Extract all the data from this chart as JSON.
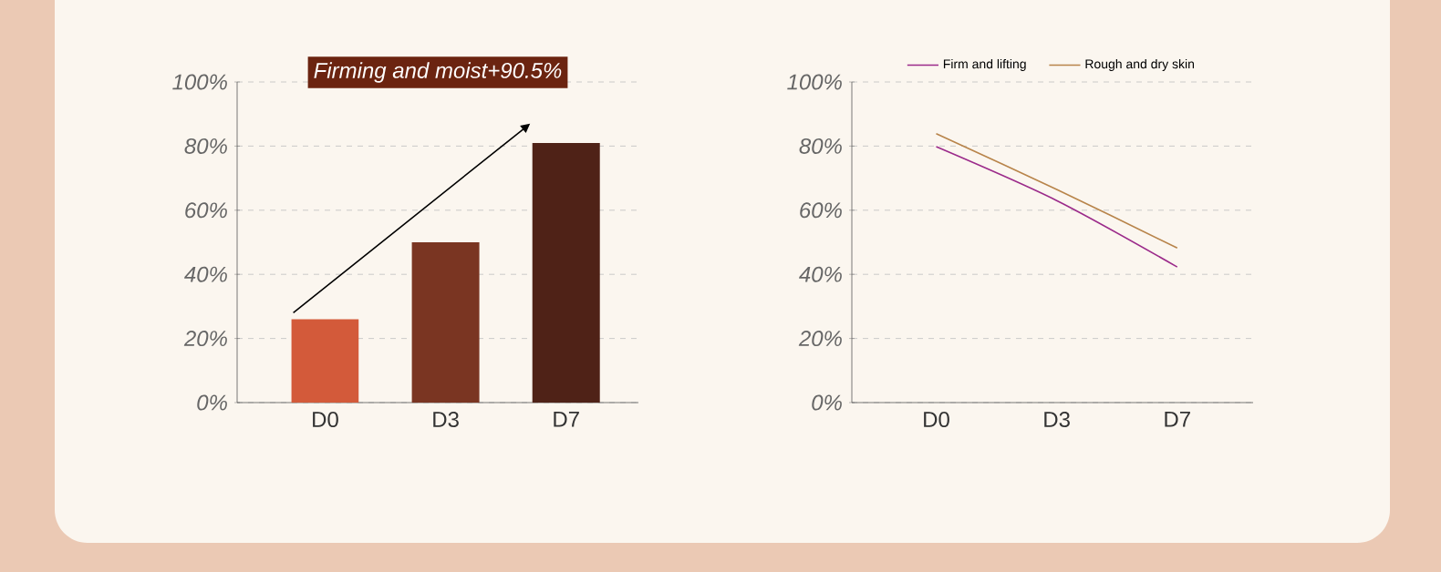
{
  "chart_data": [
    {
      "type": "bar",
      "categories": [
        "D0",
        "D3",
        "D7"
      ],
      "values": [
        26,
        50,
        81
      ],
      "colors": [
        "#d35a3a",
        "#7a3522",
        "#4f2217"
      ],
      "ylim": [
        0,
        100
      ],
      "yticks": [
        {
          "value": 0,
          "label": "0%"
        },
        {
          "value": 20,
          "label": "20%"
        },
        {
          "value": 40,
          "label": "40%"
        },
        {
          "value": 60,
          "label": "60%"
        },
        {
          "value": 80,
          "label": "80%"
        },
        {
          "value": 100,
          "label": "100%"
        }
      ],
      "grid": "y",
      "annotations": [
        "Firming and moist+90.5%"
      ]
    },
    {
      "type": "line",
      "categories": [
        "D0",
        "D3",
        "D7"
      ],
      "series": [
        {
          "name": "Firm and lifting",
          "color": "#9b2a8a",
          "values": [
            79.8,
            63,
            42.3
          ]
        },
        {
          "name": "Rough and dry skin",
          "color": "#b8844a",
          "values": [
            83.9,
            66.5,
            48.2
          ]
        }
      ],
      "ylim": [
        0,
        100
      ],
      "yticks": [
        {
          "value": 0,
          "label": "0%"
        },
        {
          "value": 20,
          "label": "20%"
        },
        {
          "value": 40,
          "label": "40%"
        },
        {
          "value": 60,
          "label": "60%"
        },
        {
          "value": 80,
          "label": "80%"
        },
        {
          "value": 100,
          "label": "100%"
        }
      ],
      "grid": "y",
      "legend": "top",
      "line_style": "solid",
      "marker": "none"
    }
  ]
}
